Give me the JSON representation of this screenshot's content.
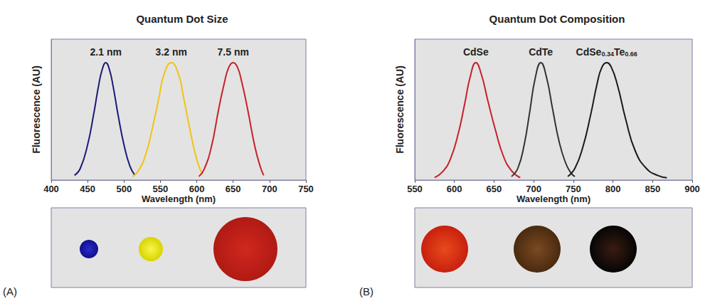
{
  "chart_data": [
    {
      "type": "line",
      "title": "Quantum Dot Size",
      "panel_label": "(A)",
      "x_label": "Wavelength (nm)",
      "y_label": "Fluorescence (AU)",
      "xlim": [
        400,
        750
      ],
      "xticks": [
        400,
        450,
        500,
        550,
        600,
        650,
        700,
        750
      ],
      "ylim": [
        0,
        1.2
      ],
      "yticks": [],
      "tick_labels": "x",
      "grid": false,
      "data_labels": false,
      "series": [
        {
          "name": "2.1 nm",
          "color": "#1c1c78",
          "x": [
            432,
            440,
            450,
            458,
            465,
            470,
            475,
            480,
            485,
            492,
            500,
            508,
            515
          ],
          "values": [
            0.04,
            0.1,
            0.3,
            0.55,
            0.8,
            0.94,
            1.0,
            0.94,
            0.8,
            0.55,
            0.3,
            0.12,
            0.04
          ]
        },
        {
          "name": "3.2 nm",
          "color": "#f2c314",
          "x": [
            512,
            520,
            530,
            540,
            548,
            555,
            565,
            575,
            582,
            590,
            598,
            604,
            608
          ],
          "values": [
            0.03,
            0.08,
            0.22,
            0.47,
            0.7,
            0.9,
            1.0,
            0.9,
            0.7,
            0.45,
            0.22,
            0.1,
            0.05
          ]
        },
        {
          "name": "7.5 nm",
          "color": "#c8202a",
          "x": [
            603,
            610,
            620,
            630,
            638,
            644,
            650,
            656,
            662,
            670,
            680,
            688,
            692
          ],
          "values": [
            0.03,
            0.09,
            0.28,
            0.6,
            0.83,
            0.96,
            1.0,
            0.96,
            0.83,
            0.6,
            0.28,
            0.1,
            0.04
          ]
        }
      ]
    },
    {
      "type": "line",
      "title": "Quantum Dot Composition",
      "panel_label": "(B)",
      "x_label": "Wavelength (nm)",
      "y_label": "Fluorescence (AU)",
      "xlim": [
        550,
        900
      ],
      "xticks": [
        550,
        600,
        650,
        700,
        750,
        800,
        850,
        900
      ],
      "ylim": [
        0,
        1.2
      ],
      "yticks": [],
      "tick_labels": "x",
      "grid": false,
      "data_labels": false,
      "series": [
        {
          "name": "CdSe",
          "color": "#c8202a",
          "x": [
            575,
            585,
            595,
            605,
            613,
            620,
            627,
            634,
            642,
            652,
            662,
            672,
            683
          ],
          "values": [
            0.02,
            0.07,
            0.18,
            0.4,
            0.65,
            0.88,
            1.0,
            0.9,
            0.68,
            0.42,
            0.2,
            0.08,
            0.02
          ]
        },
        {
          "name": "CdTe",
          "color": "#333333",
          "x": [
            672,
            680,
            688,
            695,
            702,
            709,
            716,
            724,
            732,
            740,
            747,
            752
          ],
          "values": [
            0.03,
            0.1,
            0.3,
            0.58,
            0.87,
            1.0,
            0.88,
            0.6,
            0.33,
            0.15,
            0.06,
            0.03
          ]
        },
        {
          "name": "CdSe0.34Te0.66",
          "color": "#1a1a1a",
          "x": [
            743,
            752,
            762,
            772,
            780,
            786,
            792,
            798,
            806,
            816,
            828,
            842,
            856,
            868
          ],
          "values": [
            0.03,
            0.1,
            0.28,
            0.56,
            0.82,
            0.96,
            1.0,
            0.96,
            0.8,
            0.52,
            0.25,
            0.1,
            0.04,
            0.02
          ]
        }
      ]
    }
  ]
}
